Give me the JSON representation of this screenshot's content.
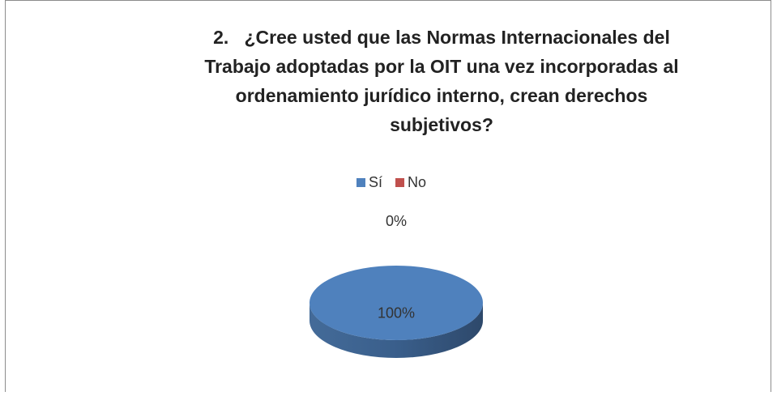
{
  "chart_data": {
    "type": "pie",
    "title": [
      "2.   ¿Cree usted que las Normas Internacionales del",
      "Trabajo adoptadas por la OIT una vez incorporadas al",
      "ordenamiento jurídico interno, crean derechos",
      "subjetivos?"
    ],
    "categories": [
      "Sí",
      "No"
    ],
    "values": [
      100,
      0
    ],
    "value_labels": [
      "100%",
      "0%"
    ],
    "colors": [
      "#4f81bd",
      "#c0504d"
    ],
    "legend": "top"
  }
}
